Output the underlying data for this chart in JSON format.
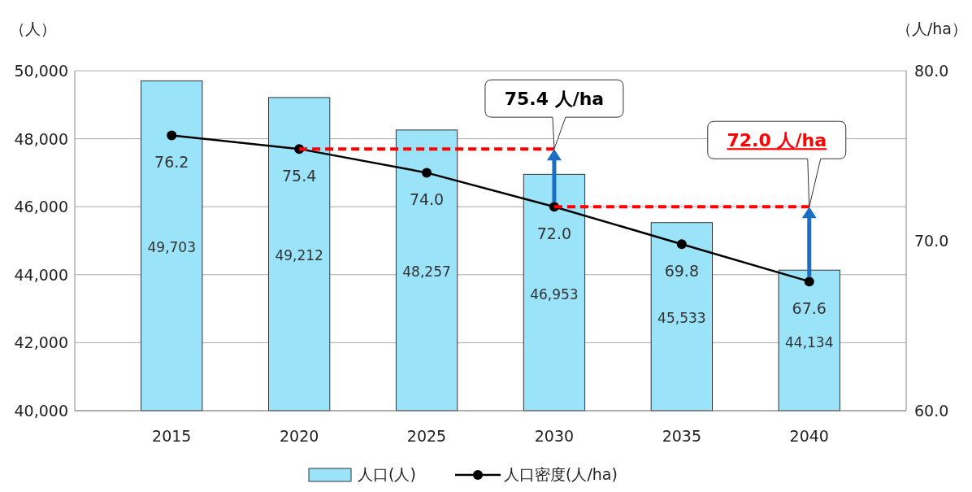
{
  "chart_data": {
    "type": "bar",
    "categories": [
      "2015",
      "2020",
      "2025",
      "2030",
      "2035",
      "2040"
    ],
    "ylabel": "（人）",
    "y2label": "（人/ha）",
    "ylim": [
      40000,
      50000
    ],
    "yticks": [
      {
        "value": 40000,
        "label": "40,000"
      },
      {
        "value": 42000,
        "label": "42,000"
      },
      {
        "value": 44000,
        "label": "44,000"
      },
      {
        "value": 46000,
        "label": "46,000"
      },
      {
        "value": 48000,
        "label": "48,000"
      },
      {
        "value": 50000,
        "label": "50,000"
      }
    ],
    "y2lim": [
      60,
      80
    ],
    "y2ticks": [
      {
        "value": 60,
        "label": "60.0"
      },
      {
        "value": 70,
        "label": "70.0"
      },
      {
        "value": 80,
        "label": "80.0"
      }
    ],
    "grid": "y",
    "legend": "bottom",
    "series": [
      {
        "name": "人口(人)",
        "color": "#9be3f9",
        "values": [
          49703,
          49212,
          48257,
          46953,
          45533,
          44134
        ],
        "value_labels": [
          "49,703",
          "49,212",
          "48,257",
          "46,953",
          "45,533",
          "44,134"
        ]
      },
      {
        "name": "人口密度(人/ha)",
        "type": "line",
        "axis": "y2",
        "color": "#000000",
        "marker": "circle",
        "values": [
          76.2,
          75.4,
          74.0,
          72.0,
          69.8,
          67.6
        ],
        "value_labels": [
          "76.2",
          "75.4",
          "74.0",
          "72.0",
          "69.8",
          "67.6"
        ]
      },
      {
        "type": "line",
        "axis": "y2",
        "color": "#ff0000",
        "line_style": "dashed",
        "values": [
          null,
          75.4,
          75.4,
          75.4,
          null,
          null
        ]
      },
      {
        "type": "line",
        "axis": "y2",
        "color": "#ff0000",
        "line_style": "dashed",
        "values": [
          null,
          null,
          null,
          72.0,
          72.0,
          72.0
        ]
      }
    ],
    "annotations": [
      "75.4 人/ha",
      "72.0 人/ha"
    ]
  }
}
